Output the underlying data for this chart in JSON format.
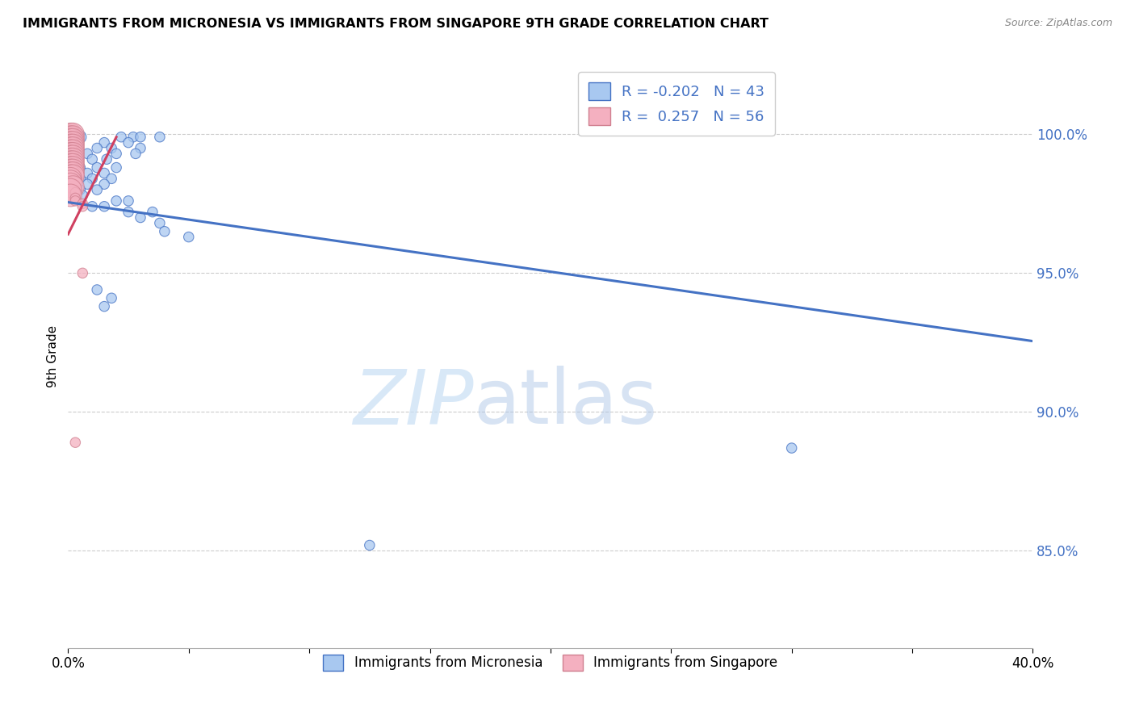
{
  "title": "IMMIGRANTS FROM MICRONESIA VS IMMIGRANTS FROM SINGAPORE 9TH GRADE CORRELATION CHART",
  "source": "Source: ZipAtlas.com",
  "ylabel": "9th Grade",
  "ytick_values": [
    0.85,
    0.9,
    0.95,
    1.0
  ],
  "xlim": [
    0.0,
    0.4
  ],
  "ylim": [
    0.815,
    1.025
  ],
  "legend_r_micronesia": "-0.202",
  "legend_n_micronesia": "43",
  "legend_r_singapore": "0.257",
  "legend_n_singapore": "56",
  "color_micronesia": "#a8c8f0",
  "color_singapore": "#f4b0c0",
  "trendline_micronesia_color": "#4472c4",
  "trendline_singapore_color": "#d04060",
  "watermark_zip": "ZIP",
  "watermark_atlas": "atlas",
  "micronesia_points": [
    [
      0.005,
      0.999
    ],
    [
      0.022,
      0.999
    ],
    [
      0.027,
      0.999
    ],
    [
      0.03,
      0.999
    ],
    [
      0.038,
      0.999
    ],
    [
      0.015,
      0.997
    ],
    [
      0.025,
      0.997
    ],
    [
      0.012,
      0.995
    ],
    [
      0.018,
      0.995
    ],
    [
      0.03,
      0.995
    ],
    [
      0.008,
      0.993
    ],
    [
      0.02,
      0.993
    ],
    [
      0.028,
      0.993
    ],
    [
      0.01,
      0.991
    ],
    [
      0.016,
      0.991
    ],
    [
      0.005,
      0.988
    ],
    [
      0.012,
      0.988
    ],
    [
      0.02,
      0.988
    ],
    [
      0.008,
      0.986
    ],
    [
      0.015,
      0.986
    ],
    [
      0.005,
      0.984
    ],
    [
      0.01,
      0.984
    ],
    [
      0.018,
      0.984
    ],
    [
      0.008,
      0.982
    ],
    [
      0.015,
      0.982
    ],
    [
      0.005,
      0.98
    ],
    [
      0.012,
      0.98
    ],
    [
      0.006,
      0.978
    ],
    [
      0.02,
      0.976
    ],
    [
      0.025,
      0.976
    ],
    [
      0.01,
      0.974
    ],
    [
      0.015,
      0.974
    ],
    [
      0.025,
      0.972
    ],
    [
      0.035,
      0.972
    ],
    [
      0.03,
      0.97
    ],
    [
      0.038,
      0.968
    ],
    [
      0.04,
      0.965
    ],
    [
      0.05,
      0.963
    ],
    [
      0.012,
      0.944
    ],
    [
      0.018,
      0.941
    ],
    [
      0.015,
      0.938
    ],
    [
      0.3,
      0.887
    ],
    [
      0.125,
      0.852
    ]
  ],
  "micronesia_sizes": [
    120,
    80,
    80,
    80,
    80,
    80,
    80,
    80,
    80,
    80,
    80,
    80,
    80,
    80,
    80,
    80,
    80,
    80,
    80,
    80,
    80,
    80,
    80,
    80,
    80,
    80,
    80,
    80,
    80,
    80,
    80,
    80,
    80,
    80,
    80,
    80,
    80,
    80,
    80,
    80,
    80,
    80,
    80
  ],
  "singapore_points": [
    [
      0.001,
      1.0
    ],
    [
      0.002,
      1.0
    ],
    [
      0.003,
      1.0
    ],
    [
      0.001,
      0.999
    ],
    [
      0.002,
      0.999
    ],
    [
      0.003,
      0.999
    ],
    [
      0.004,
      0.999
    ],
    [
      0.001,
      0.998
    ],
    [
      0.002,
      0.998
    ],
    [
      0.003,
      0.998
    ],
    [
      0.004,
      0.998
    ],
    [
      0.001,
      0.997
    ],
    [
      0.002,
      0.997
    ],
    [
      0.003,
      0.997
    ],
    [
      0.004,
      0.997
    ],
    [
      0.001,
      0.996
    ],
    [
      0.002,
      0.996
    ],
    [
      0.003,
      0.996
    ],
    [
      0.001,
      0.995
    ],
    [
      0.002,
      0.995
    ],
    [
      0.003,
      0.995
    ],
    [
      0.001,
      0.994
    ],
    [
      0.002,
      0.994
    ],
    [
      0.003,
      0.994
    ],
    [
      0.001,
      0.993
    ],
    [
      0.002,
      0.993
    ],
    [
      0.003,
      0.993
    ],
    [
      0.001,
      0.992
    ],
    [
      0.002,
      0.992
    ],
    [
      0.001,
      0.991
    ],
    [
      0.002,
      0.991
    ],
    [
      0.001,
      0.99
    ],
    [
      0.002,
      0.99
    ],
    [
      0.001,
      0.989
    ],
    [
      0.002,
      0.989
    ],
    [
      0.001,
      0.988
    ],
    [
      0.002,
      0.988
    ],
    [
      0.001,
      0.987
    ],
    [
      0.002,
      0.987
    ],
    [
      0.001,
      0.986
    ],
    [
      0.002,
      0.986
    ],
    [
      0.001,
      0.985
    ],
    [
      0.002,
      0.985
    ],
    [
      0.001,
      0.984
    ],
    [
      0.001,
      0.983
    ],
    [
      0.001,
      0.982
    ],
    [
      0.002,
      0.981
    ],
    [
      0.001,
      0.98
    ],
    [
      0.003,
      0.979
    ],
    [
      0.001,
      0.978
    ],
    [
      0.003,
      0.977
    ],
    [
      0.003,
      0.976
    ],
    [
      0.006,
      0.975
    ],
    [
      0.006,
      0.974
    ],
    [
      0.006,
      0.95
    ],
    [
      0.003,
      0.889
    ]
  ],
  "singapore_sizes_big": 400,
  "singapore_sizes_small": 80
}
